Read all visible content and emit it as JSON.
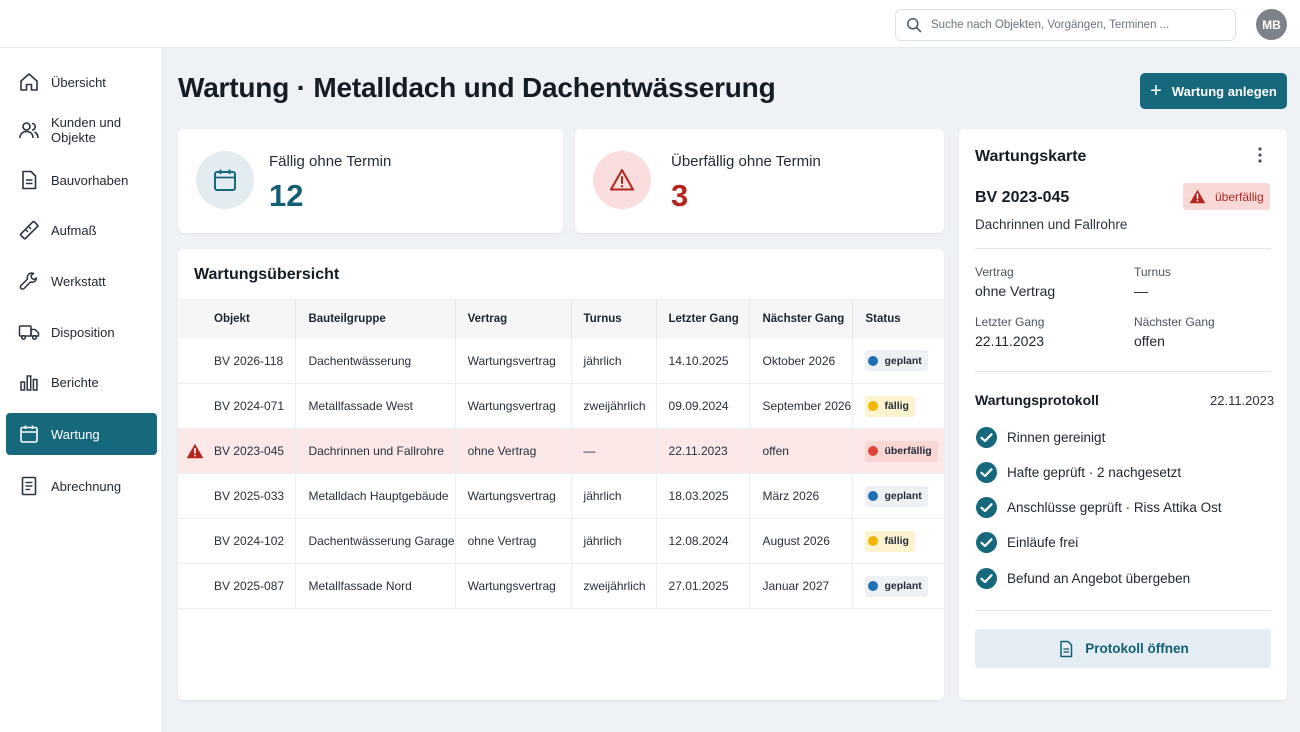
{
  "colors": {
    "accent": "#16697d",
    "danger": "#b3261e",
    "planned": "#1f6fb5",
    "due": "#f2b705",
    "overdue": "#e0453a"
  },
  "search": {
    "placeholder": "Suche nach Objekten, Vorgängen, Terminen ..."
  },
  "user": {
    "initials": "MB"
  },
  "sidebar": {
    "items": [
      {
        "label": "Übersicht",
        "icon": "home-icon"
      },
      {
        "label": "Kunden und Objekte",
        "icon": "users-icon"
      },
      {
        "label": "Bauvorhaben",
        "icon": "document-icon"
      },
      {
        "label": "Aufmaß",
        "icon": "ruler-icon"
      },
      {
        "label": "Werkstatt",
        "icon": "wrench-icon"
      },
      {
        "label": "Disposition",
        "icon": "truck-icon"
      },
      {
        "label": "Berichte",
        "icon": "bar-chart-icon"
      },
      {
        "label": "Wartung",
        "icon": "calendar-icon",
        "active": true
      },
      {
        "label": "Abrechnung",
        "icon": "receipt-icon"
      }
    ]
  },
  "page": {
    "title": "Wartung · Metalldach und Dachentwässerung",
    "create_button": "Wartung anlegen"
  },
  "stats": {
    "due": {
      "label": "Fällig ohne Termin",
      "value": "12"
    },
    "overdue": {
      "label": "Überfällig ohne Termin",
      "value": "3"
    }
  },
  "overview": {
    "title": "Wartungsübersicht",
    "columns": [
      "Objekt",
      "Bauteilgruppe",
      "Vertrag",
      "Turnus",
      "Letzter Gang",
      "Nächster Gang",
      "Status"
    ],
    "rows": [
      {
        "objekt": "BV 2026-118",
        "gruppe": "Dachentwässerung",
        "vertrag": "Wartungsvertrag",
        "turnus": "jährlich",
        "letzter": "14.10.2025",
        "naechster": "Oktober 2026",
        "status": "geplant",
        "status_color": "#1f6fb5",
        "badge_bg": "#eef1f4"
      },
      {
        "objekt": "BV 2024-071",
        "gruppe": "Metallfassade West",
        "vertrag": "Wartungsvertrag",
        "turnus": "zweijährlich",
        "letzter": "09.09.2024",
        "naechster": "September 2026",
        "status": "fällig",
        "status_color": "#f2b705",
        "badge_bg": "#fdf3cf"
      },
      {
        "objekt": "BV 2023-045",
        "gruppe": "Dachrinnen und Fallrohre",
        "vertrag": "ohne Vertrag",
        "turnus": "—",
        "letzter": "22.11.2023",
        "naechster": "offen",
        "status": "überfällig",
        "status_color": "#e0453a",
        "badge_bg": "#f8d6d3",
        "alert": true
      },
      {
        "objekt": "BV 2025-033",
        "gruppe": "Metalldach Hauptgebäude",
        "vertrag": "Wartungsvertrag",
        "turnus": "jährlich",
        "letzter": "18.03.2025",
        "naechster": "März 2026",
        "status": "geplant",
        "status_color": "#1f6fb5",
        "badge_bg": "#eef1f4"
      },
      {
        "objekt": "BV 2024-102",
        "gruppe": "Dachentwässerung Garage",
        "vertrag": "ohne Vertrag",
        "turnus": "jährlich",
        "letzter": "12.08.2024",
        "naechster": "August 2026",
        "status": "fällig",
        "status_color": "#f2b705",
        "badge_bg": "#fdf3cf"
      },
      {
        "objekt": "BV 2025-087",
        "gruppe": "Metallfassade Nord",
        "vertrag": "Wartungsvertrag",
        "turnus": "zweijährlich",
        "letzter": "27.01.2025",
        "naechster": "Januar 2027",
        "status": "geplant",
        "status_color": "#1f6fb5",
        "badge_bg": "#eef1f4"
      }
    ]
  },
  "card": {
    "title": "Wartungskarte",
    "object": "BV 2023-045",
    "status": "überfällig",
    "subtitle": "Dachrinnen und Fallrohre",
    "vertrag_label": "Vertrag",
    "vertrag_value": "ohne Vertrag",
    "turnus_label": "Turnus",
    "turnus_value": "—",
    "letzter_label": "Letzter Gang",
    "letzter_value": "22.11.2023",
    "naechster_label": "Nächster Gang",
    "naechster_value": "offen",
    "protocol_title": "Wartungsprotokoll",
    "protocol_date": "22.11.2023",
    "protocol_items": [
      "Rinnen gereinigt",
      "Hafte geprüft · 2 nachgesetzt",
      "Anschlüsse geprüft · Riss Attika Ost",
      "Einläufe frei",
      "Befund an Angebot übergeben"
    ],
    "protocol_button": "Protokoll öffnen"
  }
}
